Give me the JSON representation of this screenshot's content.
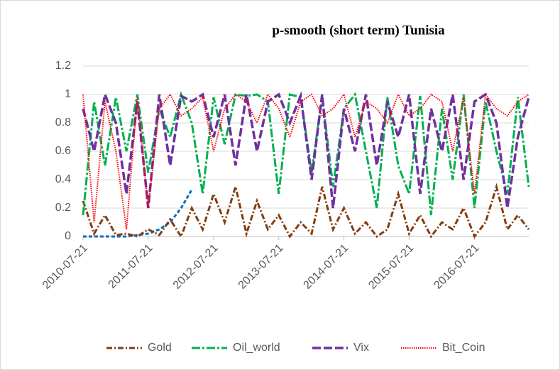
{
  "chart_data": {
    "type": "line",
    "title": "p-smooth (short term) Tunisia",
    "x": [
      "2010-07-21",
      "2010-09-21",
      "2010-11-21",
      "2011-01-21",
      "2011-03-21",
      "2011-05-21",
      "2011-07-21",
      "2011-09-21",
      "2011-11-21",
      "2012-01-21",
      "2012-03-21",
      "2012-05-21",
      "2012-07-21",
      "2012-09-21",
      "2012-11-21",
      "2013-01-21",
      "2013-03-21",
      "2013-05-21",
      "2013-07-21",
      "2013-09-21",
      "2013-11-21",
      "2014-01-21",
      "2014-03-21",
      "2014-05-21",
      "2014-07-21",
      "2014-09-21",
      "2014-11-21",
      "2015-01-21",
      "2015-03-21",
      "2015-05-21",
      "2015-07-21",
      "2015-09-21",
      "2015-11-21",
      "2016-01-21",
      "2016-03-21",
      "2016-05-21",
      "2016-07-21",
      "2016-09-21",
      "2016-11-21",
      "2017-01-21",
      "2017-03-21",
      "2017-05-21"
    ],
    "series": [
      {
        "color": "#0070c0",
        "line_style": "dash",
        "values": [
          0,
          0,
          0,
          0,
          0,
          0.01,
          0.02,
          0.05,
          0.1,
          0.2,
          0.33,
          null,
          null,
          null,
          null,
          null,
          null,
          null,
          null,
          null,
          null,
          null,
          null,
          null,
          null,
          null,
          null,
          null,
          null,
          null,
          null,
          null,
          null,
          null,
          null,
          null,
          null,
          null,
          null,
          null,
          null,
          null
        ]
      },
      {
        "name": "Gold",
        "color": "#843c0c",
        "line_style": "dash-dot",
        "values": [
          0.25,
          0.02,
          0.15,
          0.01,
          0.02,
          0.0,
          0.05,
          0.01,
          0.12,
          0.0,
          0.2,
          0.05,
          0.3,
          0.1,
          0.35,
          0.02,
          0.25,
          0.05,
          0.15,
          0.0,
          0.1,
          0.02,
          0.35,
          0.05,
          0.2,
          0.02,
          0.1,
          0.0,
          0.05,
          0.3,
          0.02,
          0.15,
          0.0,
          0.1,
          0.05,
          0.2,
          0.0,
          0.1,
          0.35,
          0.05,
          0.15,
          0.05
        ]
      },
      {
        "name": "Oil_world",
        "color": "#00b050",
        "line_style": "long-dash-dot",
        "values": [
          0.15,
          0.95,
          0.5,
          0.98,
          0.6,
          1,
          0.45,
          0.9,
          0.7,
          1,
          0.8,
          0.3,
          0.98,
          0.65,
          1,
          0.99,
          1,
          0.95,
          0.3,
          1,
          0.98,
          0.45,
          0.99,
          0.35,
          0.9,
          1,
          0.6,
          0.2,
          0.98,
          0.5,
          0.3,
          0.99,
          0.15,
          0.9,
          0.4,
          1,
          0.2,
          0.95,
          0.6,
          0.3,
          0.98,
          0.35
        ]
      },
      {
        "name": "Vix",
        "color": "#7030a0",
        "line_style": "long-dash",
        "values": [
          0.9,
          0.6,
          1,
          0.8,
          0.3,
          0.95,
          0.2,
          1,
          0.5,
          0.99,
          0.95,
          1,
          0.7,
          1,
          0.5,
          1,
          0.6,
          0.95,
          1,
          0.8,
          0.99,
          0.4,
          1,
          0.2,
          0.9,
          0.6,
          1,
          0.5,
          0.95,
          0.7,
          1,
          0.3,
          0.9,
          0.6,
          1,
          0.4,
          0.95,
          1,
          0.8,
          0.2,
          0.7,
          0.98
        ]
      },
      {
        "name": "Bit_Coin",
        "color": "#ff0000",
        "line_style": "dot",
        "values": [
          1,
          0.1,
          0.95,
          0.6,
          0.05,
          0.98,
          0.2,
          0.9,
          1,
          0.85,
          0.9,
          0.98,
          0.6,
          0.9,
          1,
          0.95,
          0.8,
          1,
          0.9,
          0.7,
          0.95,
          1,
          0.85,
          0.9,
          1,
          0.7,
          0.95,
          0.9,
          0.8,
          1,
          0.85,
          0.9,
          1,
          0.95,
          0.6,
          0.98,
          0.3,
          1,
          0.9,
          0.85,
          0.95,
          1
        ]
      }
    ],
    "xlim": [
      "2010-07-21",
      "2017-05-21"
    ],
    "xticks": [
      "2010-07-21",
      "2011-07-21",
      "2012-07-21",
      "2013-07-21",
      "2014-07-21",
      "2015-07-21",
      "2016-07-21"
    ],
    "ylim": [
      0,
      1.2
    ],
    "yticks": [
      0,
      0.2,
      0.4,
      0.6,
      0.8,
      1,
      1.2
    ],
    "grid": true,
    "legend": "bottom"
  }
}
